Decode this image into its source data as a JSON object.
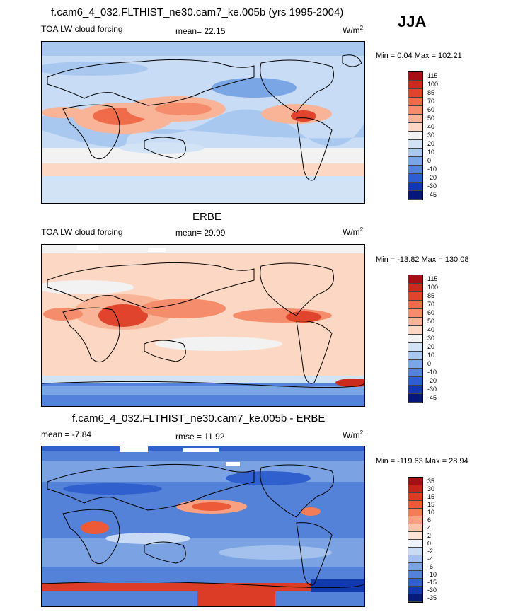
{
  "season": "JJA",
  "panels": [
    {
      "title": "f.cam6_4_032.FLTHIST_ne30.cam7_ke.005b (yrs 1995-2004)",
      "left_label": "TOA LW cloud forcing",
      "center_label": "mean=  22.15",
      "units": "W/m",
      "units_sup": "2",
      "minmax": "Min =   0.04 Max = 102.21",
      "colorbar_labels": [
        "115",
        "100",
        "85",
        "70",
        "60",
        "50",
        "40",
        "30",
        "20",
        "10",
        "0",
        "-10",
        "-20",
        "-30",
        "-45"
      ],
      "colorbar_colors": [
        "#a50f15",
        "#cb2a1d",
        "#e0442c",
        "#ef6b4a",
        "#f58d6c",
        "#f9b497",
        "#fcd8c4",
        "#f2f2f2",
        "#d3e3f6",
        "#a9c8ef",
        "#7ba6e6",
        "#5381dc",
        "#2f5ed2",
        "#1237b5",
        "#06177a"
      ]
    },
    {
      "title": "ERBE",
      "left_label": "TOA LW cloud forcing",
      "center_label": "mean=  29.99",
      "units": "W/m",
      "units_sup": "2",
      "minmax": "Min = -13.82 Max = 130.08",
      "colorbar_labels": [
        "115",
        "100",
        "85",
        "70",
        "60",
        "50",
        "40",
        "30",
        "20",
        "10",
        "0",
        "-10",
        "-20",
        "-30",
        "-45"
      ],
      "colorbar_colors": [
        "#a50f15",
        "#cb2a1d",
        "#e0442c",
        "#ef6b4a",
        "#f58d6c",
        "#f9b497",
        "#fcd8c4",
        "#f2f2f2",
        "#d3e3f6",
        "#a9c8ef",
        "#7ba6e6",
        "#5381dc",
        "#2f5ed2",
        "#1237b5",
        "#06177a"
      ]
    },
    {
      "title": "f.cam6_4_032.FLTHIST_ne30.cam7_ke.005b - ERBE",
      "left_label": "mean =  -7.84",
      "center_label": "rmse =  11.92",
      "units": "W/m",
      "units_sup": "2",
      "minmax": "Min = -119.63 Max =  28.94",
      "colorbar_labels": [
        "35",
        "30",
        "15",
        "15",
        "10",
        "6",
        "4",
        "2",
        "0",
        "-2",
        "-4",
        "-6",
        "-10",
        "-15",
        "-30",
        "-35"
      ],
      "colorbar_colors": [
        "#a50f15",
        "#c6241b",
        "#dc3b26",
        "#ec5a3a",
        "#f47d59",
        "#f8a07f",
        "#fbc4aa",
        "#fde3d6",
        "#eef3fb",
        "#c9dbf4",
        "#a3c1ec",
        "#7ba3e3",
        "#5482d9",
        "#2f60cd",
        "#1238ad",
        "#061a78"
      ]
    }
  ]
}
